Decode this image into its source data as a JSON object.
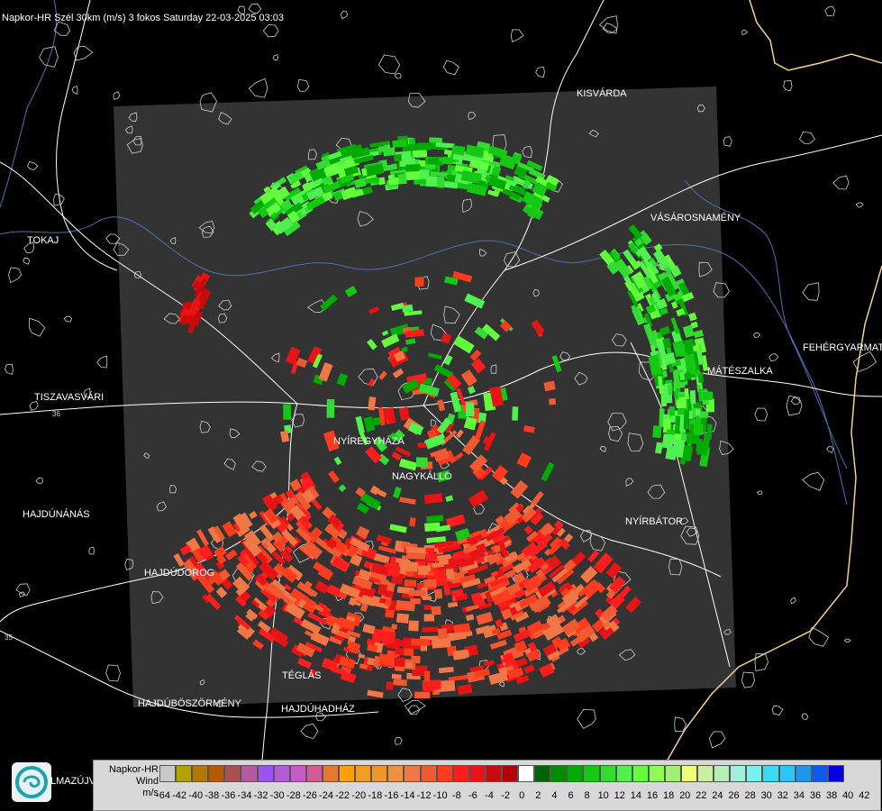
{
  "title": "Napkor-HR Szél 30km (m/s) 3 fokos Saturday 22-03-2025 03:03",
  "cities": [
    {
      "name": "KISVÁRDA"
    },
    {
      "name": "VÁSÁROSNAMÉNY"
    },
    {
      "name": "TOKAJ"
    },
    {
      "name": "FEHÉRGYARMAT"
    },
    {
      "name": "MÁTÉSZALKA"
    },
    {
      "name": "TISZAVASVÁRI"
    },
    {
      "name": "NYÍREGYHÁZA"
    },
    {
      "name": "NAGYKÁLLÓ"
    },
    {
      "name": "HAJDÚNÁNÁS"
    },
    {
      "name": "NYÍRBÁTOR"
    },
    {
      "name": "HAJDÚDOROG"
    },
    {
      "name": "TÉGLÁS"
    },
    {
      "name": "HAJDÚBÖSZÖRMÉNY"
    },
    {
      "name": "HAJDÚHADHÁZ"
    }
  ],
  "road_numbers": [
    "36",
    "35"
  ],
  "legend": {
    "line1": "Napkor-HR",
    "line2": "Wind",
    "line3": "m/s",
    "colors": [
      "#c8c8c8",
      "#b4a000",
      "#b47800",
      "#b45a00",
      "#aa5050",
      "#b45aa0",
      "#a050f0",
      "#b45ad2",
      "#c85ac8",
      "#d25a96",
      "#e67832",
      "#ffa000",
      "#f0a01e",
      "#f09628",
      "#f09040",
      "#f07846",
      "#f05a32",
      "#ff3c1e",
      "#ff1e1e",
      "#e61414",
      "#c80a0a",
      "#b40000",
      "#ffffff",
      "#006400",
      "#008c00",
      "#00aa00",
      "#14c814",
      "#32dc32",
      "#50f050",
      "#64ff3c",
      "#8cff50",
      "#a0f078",
      "#f0ff78",
      "#c8f0a0",
      "#b4f0b4",
      "#a0f0dc",
      "#78f0f0",
      "#3cdcf0",
      "#28c8f0",
      "#1e96f0",
      "#0a5af0",
      "#0000dc"
    ],
    "ticks": [
      "-64",
      "-42",
      "-40",
      "-38",
      "-36",
      "-34",
      "-32",
      "-30",
      "-28",
      "-26",
      "-24",
      "-22",
      "-20",
      "-18",
      "-16",
      "-14",
      "-12",
      "-10",
      "-8",
      "-6",
      "-4",
      "-2",
      "0",
      "2",
      "4",
      "6",
      "8",
      "10",
      "12",
      "14",
      "16",
      "18",
      "20",
      "22",
      "24",
      "26",
      "28",
      "30",
      "32",
      "34",
      "36",
      "38",
      "40",
      "42"
    ]
  },
  "logo_text": "LMAZÚJVÁR",
  "colors": {
    "radar_bg": "#333333",
    "background": "#000000",
    "border_line": "#f0d090",
    "road": "#ffffff",
    "river": "#6080c0"
  }
}
